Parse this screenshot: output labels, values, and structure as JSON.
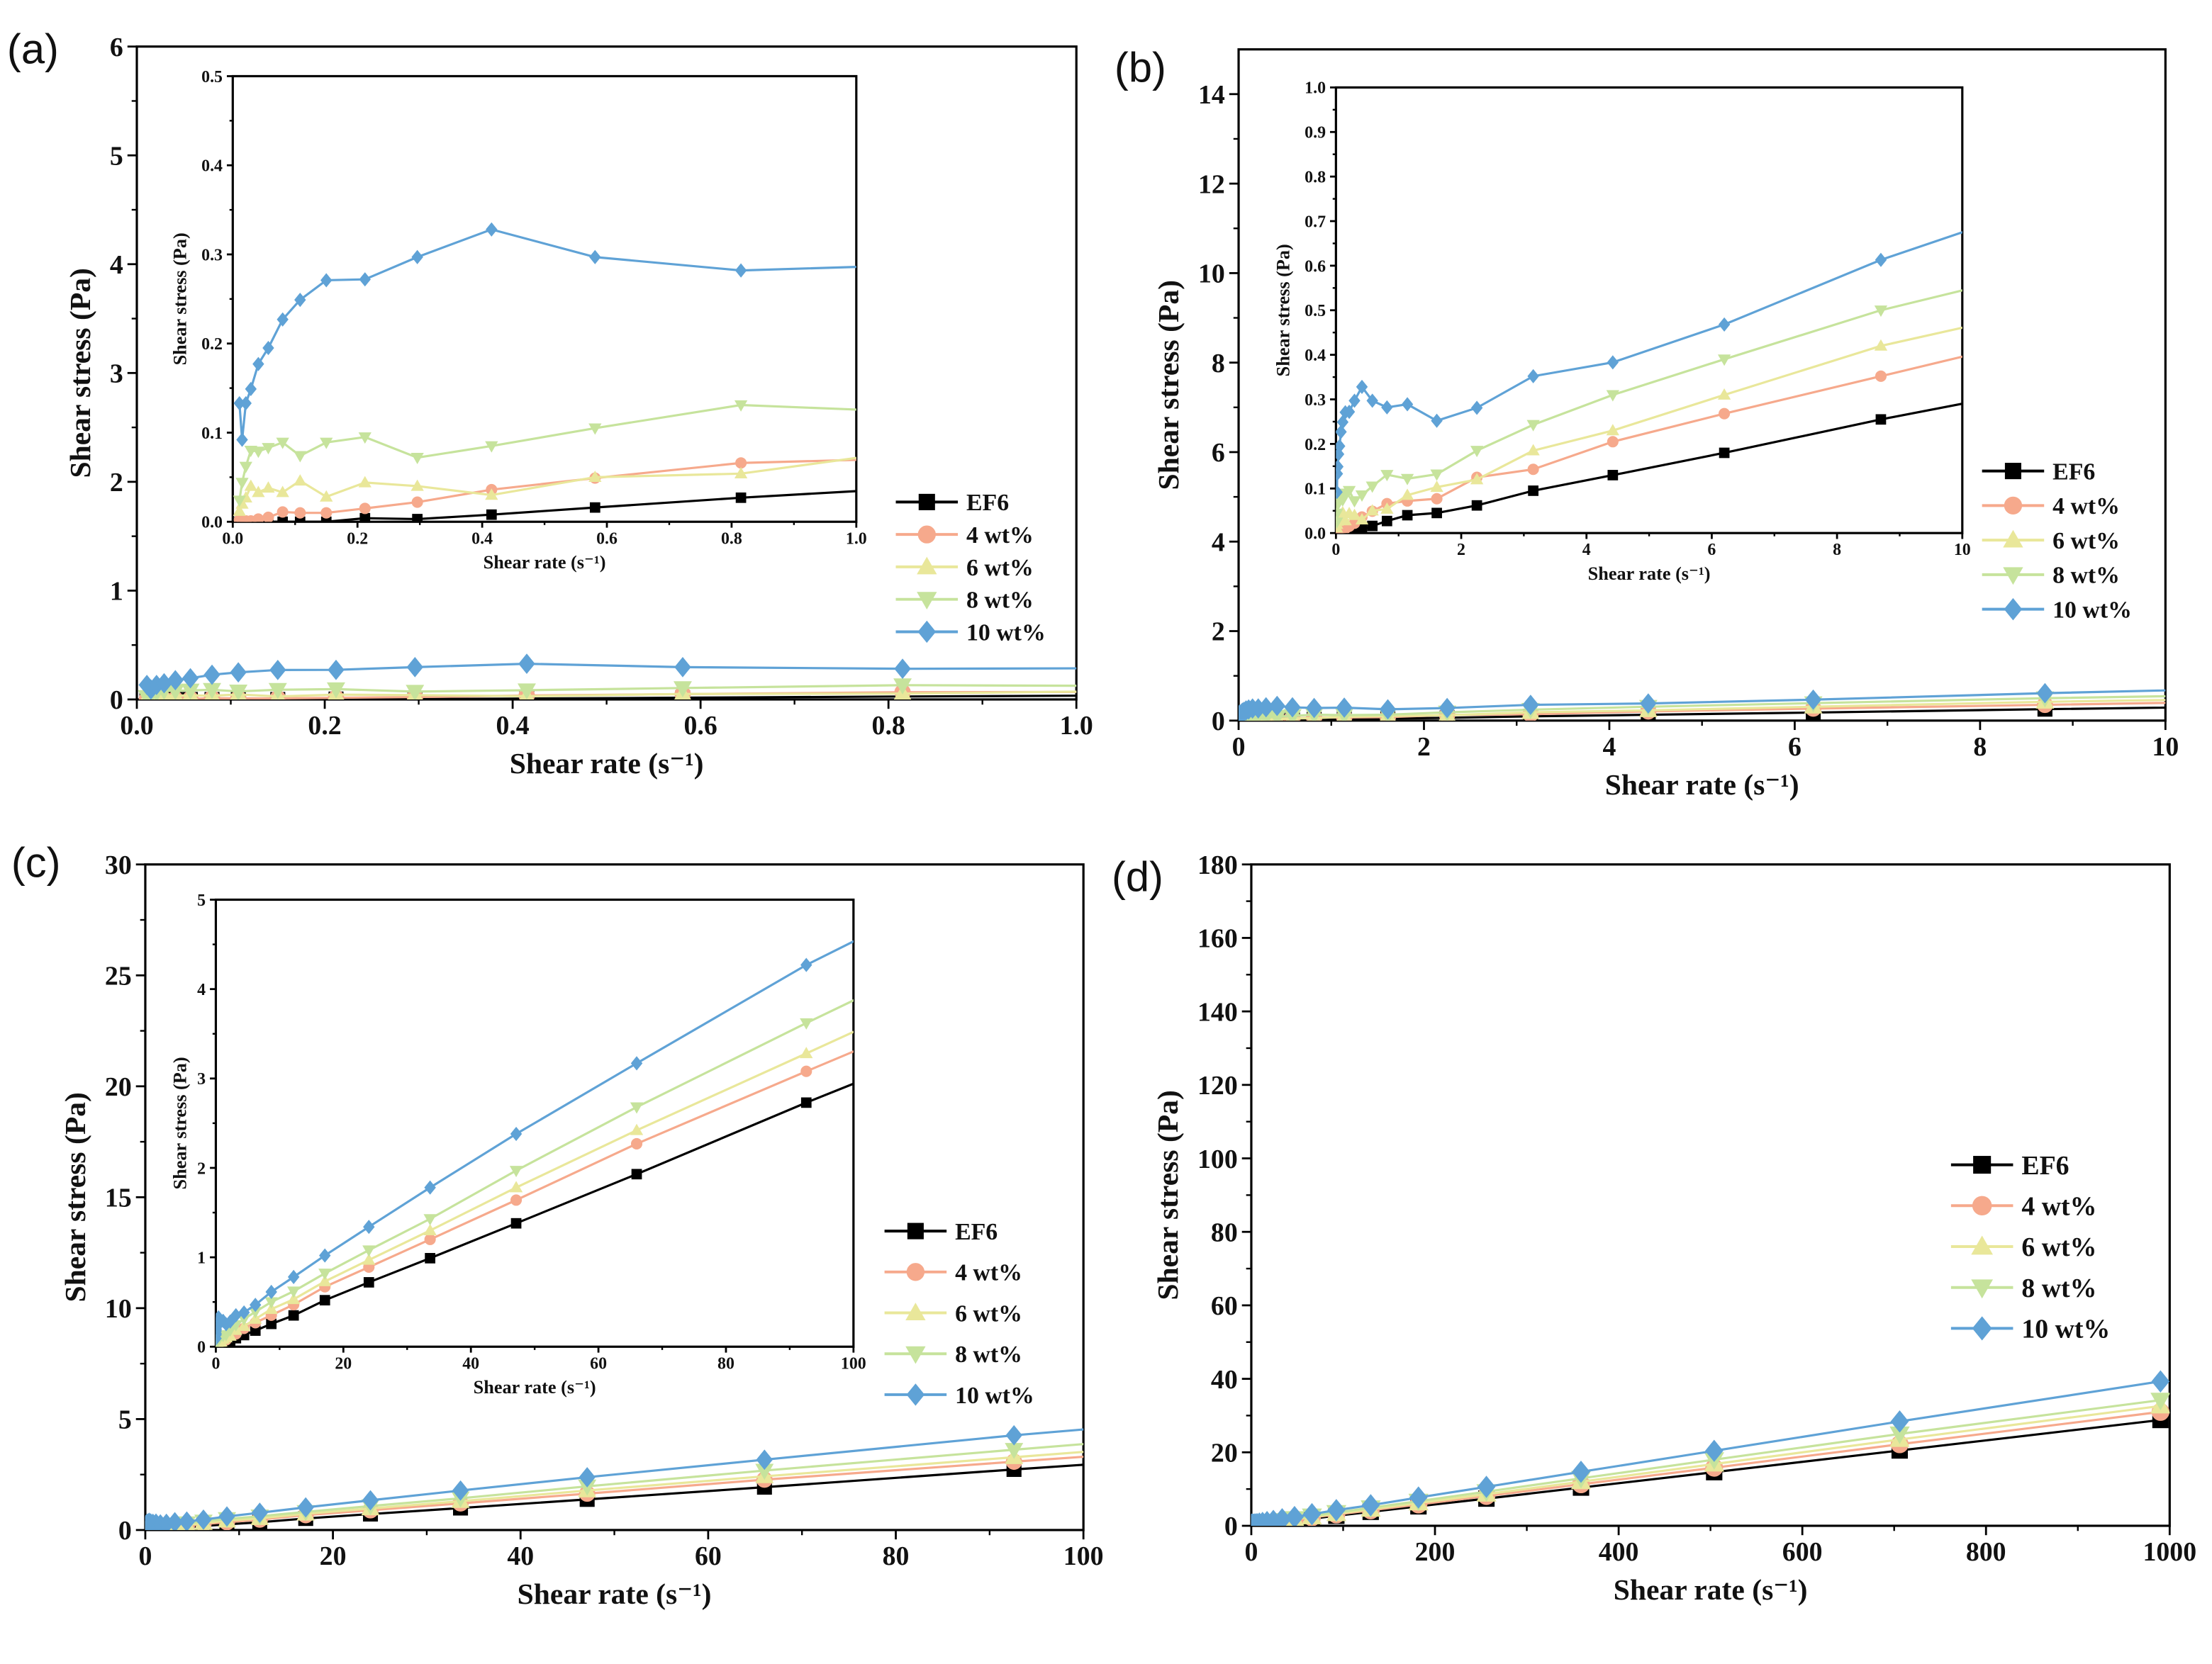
{
  "chart_data": {
    "type": "line",
    "x": [
      0.0107,
      0.015,
      0.021,
      0.029,
      0.041,
      0.057,
      0.08,
      0.108,
      0.15,
      0.212,
      0.296,
      0.415,
      0.581,
      0.815,
      1.14,
      1.61,
      2.25,
      3.15,
      4.42,
      6.2,
      8.7,
      12.2,
      17.1,
      24,
      33.6,
      47.1,
      66,
      92.6,
      130,
      182,
      256,
      359,
      504,
      706,
      990
    ],
    "series": [
      {
        "name": "EF6",
        "color": "#000000",
        "marker": "square",
        "values": [
          0,
          0,
          0,
          0,
          0,
          0,
          0,
          0,
          0,
          0.004,
          0.003,
          0.008,
          0.016,
          0.027,
          0.04,
          0.045,
          0.062,
          0.095,
          0.13,
          0.18,
          0.255,
          0.35,
          0.52,
          0.72,
          0.99,
          1.38,
          1.93,
          2.73,
          3.8,
          5.3,
          7.4,
          10.4,
          14.6,
          20.5,
          28.8
        ]
      },
      {
        "name": "4 wt%",
        "color": "#f6a98c",
        "marker": "circle",
        "values": [
          0.002,
          0.002,
          0.001,
          0.001,
          0.003,
          0.005,
          0.011,
          0.01,
          0.01,
          0.015,
          0.022,
          0.036,
          0.049,
          0.066,
          0.072,
          0.077,
          0.125,
          0.143,
          0.205,
          0.268,
          0.352,
          0.47,
          0.67,
          0.89,
          1.2,
          1.64,
          2.27,
          3.08,
          4.2,
          5.8,
          8.1,
          11.3,
          15.8,
          22.2,
          31
        ]
      },
      {
        "name": "6 wt%",
        "color": "#e9e79a",
        "marker": "triangle-up",
        "values": [
          0.012,
          0.02,
          0.027,
          0.04,
          0.033,
          0.038,
          0.033,
          0.046,
          0.028,
          0.044,
          0.04,
          0.03,
          0.05,
          0.054,
          0.085,
          0.103,
          0.12,
          0.185,
          0.23,
          0.31,
          0.42,
          0.53,
          0.73,
          0.97,
          1.3,
          1.78,
          2.42,
          3.28,
          4.5,
          6.2,
          8.6,
          12.0,
          16.8,
          23.5,
          32.6
        ]
      },
      {
        "name": "8 wt%",
        "color": "#c6e39c",
        "marker": "triangle-down",
        "values": [
          0.024,
          0.044,
          0.062,
          0.08,
          0.079,
          0.083,
          0.089,
          0.074,
          0.089,
          0.095,
          0.072,
          0.085,
          0.105,
          0.131,
          0.122,
          0.132,
          0.185,
          0.243,
          0.31,
          0.39,
          0.5,
          0.62,
          0.82,
          1.08,
          1.43,
          1.97,
          2.68,
          3.62,
          4.9,
          6.7,
          9.3,
          12.9,
          18.0,
          25.0,
          34.2
        ]
      },
      {
        "name": "10 wt%",
        "color": "#5fa2d6",
        "marker": "diamond",
        "values": [
          0.133,
          0.092,
          0.133,
          0.149,
          0.177,
          0.195,
          0.227,
          0.249,
          0.271,
          0.272,
          0.297,
          0.328,
          0.297,
          0.282,
          0.289,
          0.252,
          0.281,
          0.352,
          0.383,
          0.468,
          0.613,
          0.78,
          1.02,
          1.34,
          1.78,
          2.38,
          3.17,
          4.27,
          5.6,
          7.7,
          10.6,
          14.7,
          20.4,
          28.4,
          39.3
        ]
      }
    ],
    "panels": [
      {
        "id": "a",
        "label": "(a)",
        "xlabel": "Shear rate (s⁻¹)",
        "ylabel": "Shear stress (Pa)",
        "xlim": [
          0,
          1
        ],
        "ylim": [
          0,
          6
        ],
        "xticks": [
          "0.0",
          "0.2",
          "0.4",
          "0.6",
          "0.8",
          "1.0"
        ],
        "yticks": [
          "0",
          "1",
          "2",
          "3",
          "4",
          "5",
          "6"
        ],
        "legend": "center-right",
        "inset": {
          "xlabel": "Shear rate (s⁻¹)",
          "ylabel": "Shear stress (Pa)",
          "xlim": [
            0,
            1
          ],
          "ylim": [
            0,
            0.5
          ],
          "xticks": [
            "0.0",
            "0.2",
            "0.4",
            "0.6",
            "0.8",
            "1.0"
          ],
          "yticks": [
            "0.0",
            "0.1",
            "0.2",
            "0.3",
            "0.4",
            "0.5"
          ]
        }
      },
      {
        "id": "b",
        "label": "(b)",
        "xlabel": "Shear rate (s⁻¹)",
        "ylabel": "Shear stress (Pa)",
        "xlim": [
          0,
          10
        ],
        "ylim": [
          0,
          15
        ],
        "xticks": [
          "0",
          "2",
          "4",
          "6",
          "8",
          "10"
        ],
        "yticks": [
          "0",
          "2",
          "4",
          "6",
          "8",
          "10",
          "12",
          "14"
        ],
        "legend": "center-right",
        "inset": {
          "xlabel": "Shear rate (s⁻¹)",
          "ylabel": "Shear stress (Pa)",
          "xlim": [
            0,
            10
          ],
          "ylim": [
            0,
            1
          ],
          "xticks": [
            "0",
            "2",
            "4",
            "6",
            "8",
            "10"
          ],
          "yticks": [
            "0.0",
            "0.1",
            "0.2",
            "0.3",
            "0.4",
            "0.5",
            "0.6",
            "0.7",
            "0.8",
            "0.9",
            "1.0"
          ]
        }
      },
      {
        "id": "c",
        "label": "(c)",
        "xlabel": "Shear rate (s⁻¹)",
        "ylabel": "Shear stress (Pa)",
        "xlim": [
          0,
          100
        ],
        "ylim": [
          0,
          30
        ],
        "xticks": [
          "0",
          "20",
          "40",
          "60",
          "80",
          "100"
        ],
        "yticks": [
          "0",
          "5",
          "10",
          "15",
          "20",
          "25",
          "30"
        ],
        "legend": "center-right",
        "inset": {
          "xlabel": "Shear rate (s⁻¹)",
          "ylabel": "Shear stress (Pa)",
          "xlim": [
            0,
            100
          ],
          "ylim": [
            0,
            5
          ],
          "xticks": [
            "0",
            "20",
            "40",
            "60",
            "80",
            "100"
          ],
          "yticks": [
            "0",
            "1",
            "2",
            "3",
            "4",
            "5"
          ]
        }
      },
      {
        "id": "d",
        "label": "(d)",
        "xlabel": "Shear rate (s⁻¹)",
        "ylabel": "Shear stress (Pa)",
        "xlim": [
          0,
          1000
        ],
        "ylim": [
          0,
          180
        ],
        "xticks": [
          "0",
          "200",
          "400",
          "600",
          "800",
          "1000"
        ],
        "yticks": [
          "0",
          "20",
          "40",
          "60",
          "80",
          "100",
          "120",
          "140",
          "160",
          "180"
        ],
        "legend": "center-right"
      }
    ]
  }
}
